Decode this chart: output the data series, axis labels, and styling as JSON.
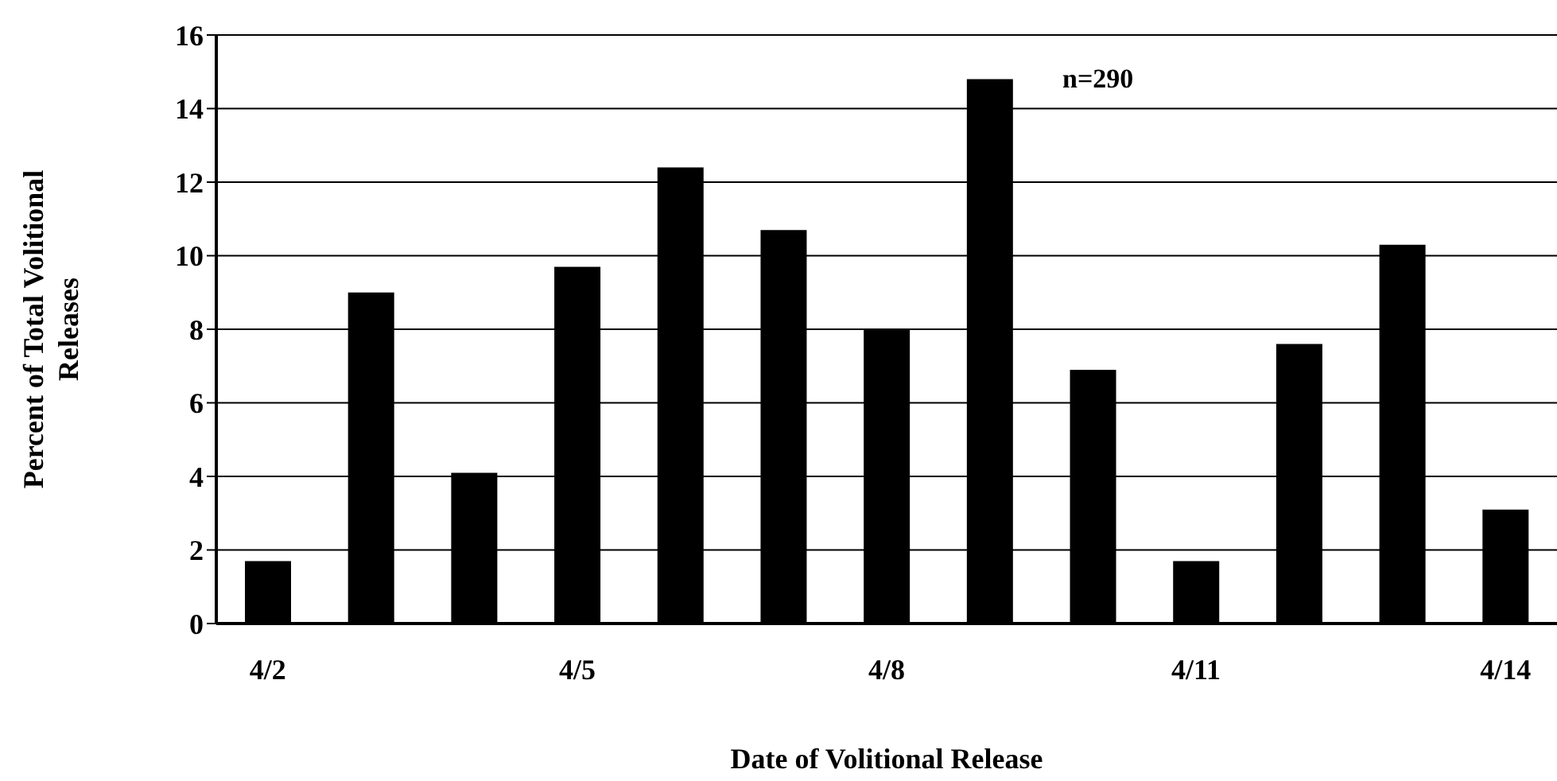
{
  "chart_data": {
    "type": "bar",
    "xlabel": "Date of Volitional Release",
    "ylabel": "Percent of Total Volitional Releases",
    "categories": [
      "4/2",
      null,
      null,
      "4/5",
      null,
      null,
      "4/8",
      null,
      null,
      "4/11",
      null,
      null,
      "4/14"
    ],
    "values": [
      1.7,
      9.0,
      4.1,
      9.7,
      12.4,
      10.7,
      8.0,
      14.8,
      6.9,
      1.7,
      7.6,
      10.3,
      3.1
    ],
    "color": "#000000",
    "ylim": [
      0,
      16
    ],
    "yticks": [
      0,
      2,
      4,
      6,
      8,
      10,
      12,
      14,
      16
    ],
    "grid": "y",
    "annotations": [
      "n=290"
    ]
  }
}
